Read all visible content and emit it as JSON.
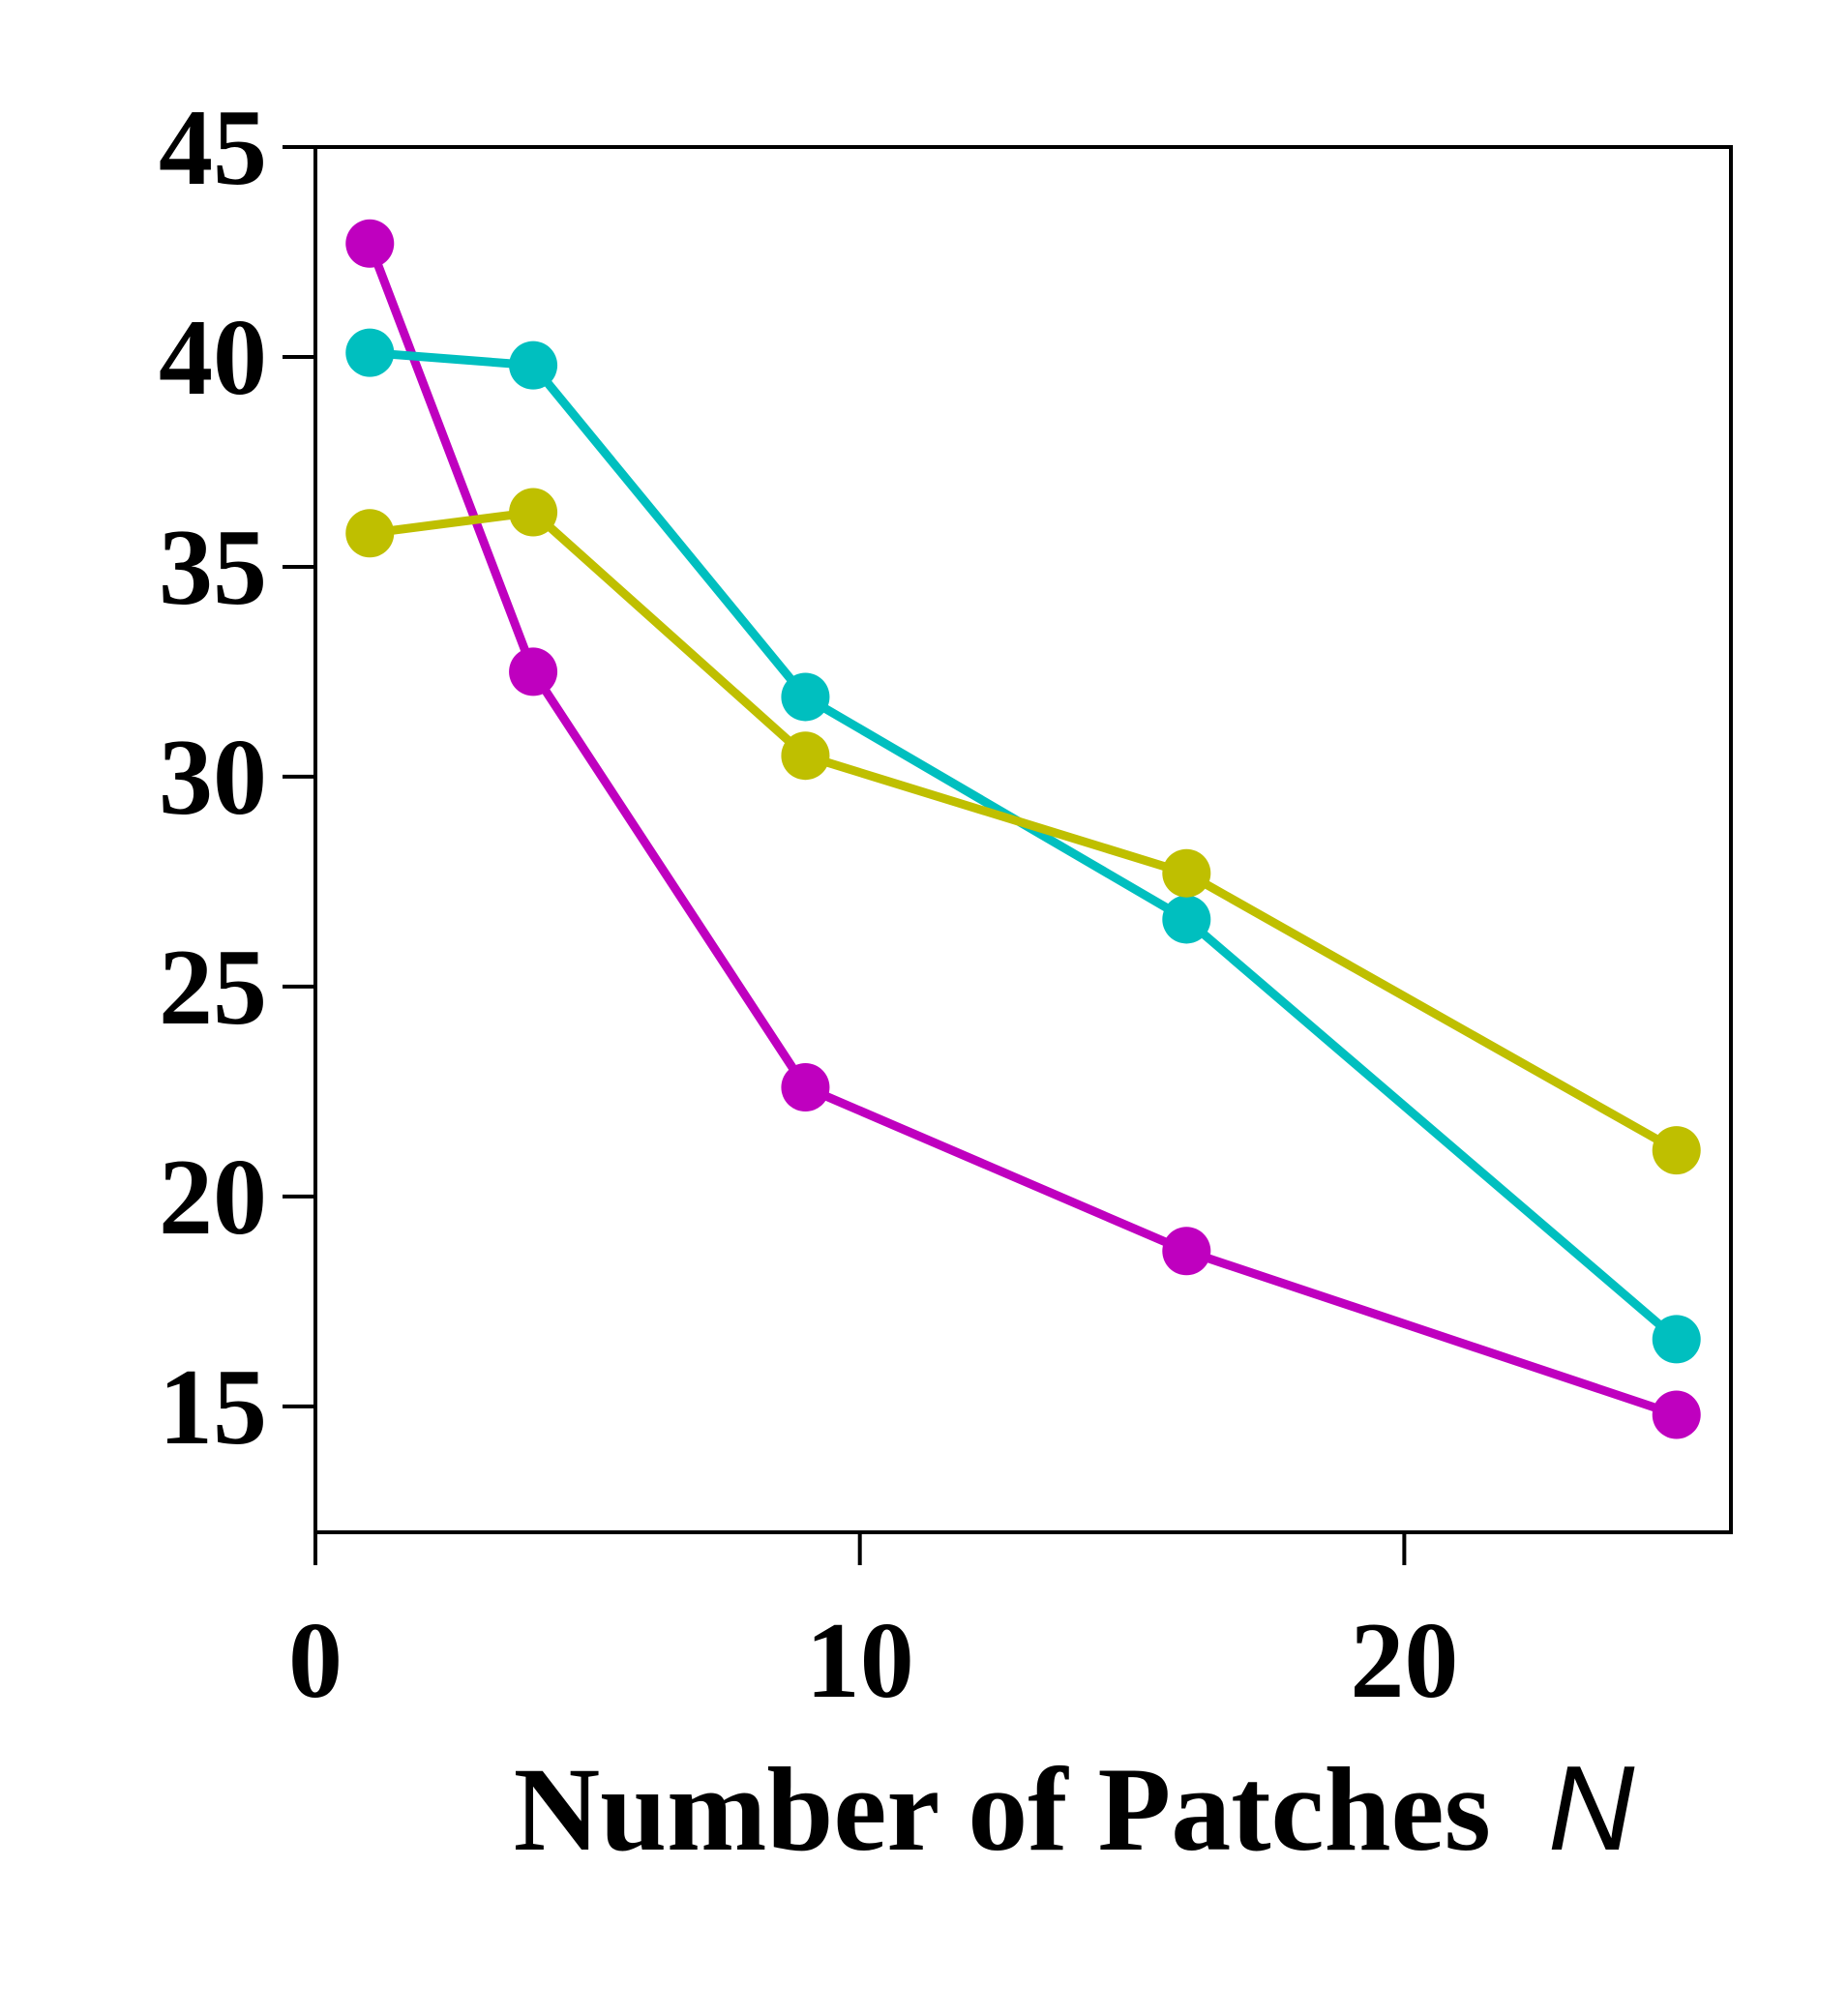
{
  "chart_data": {
    "type": "line",
    "title": "",
    "xlabel": "Number of Patches",
    "xlabel_var": "N",
    "ylabel": "",
    "xlim": [
      0,
      26
    ],
    "ylim": [
      12,
      45
    ],
    "xticks": [
      0,
      10,
      20
    ],
    "yticks": [
      15,
      20,
      25,
      30,
      35,
      40,
      45
    ],
    "grid": false,
    "x": [
      1,
      4,
      9,
      16,
      25
    ],
    "series": [
      {
        "color": "#bf00bf",
        "values": [
          42.7,
          32.5,
          22.6,
          18.7,
          14.8
        ]
      },
      {
        "color": "#00bfbf",
        "values": [
          40.1,
          39.8,
          31.9,
          26.6,
          16.6
        ]
      },
      {
        "color": "#bfbf00",
        "values": [
          35.8,
          36.3,
          30.5,
          27.7,
          21.1
        ]
      }
    ]
  }
}
